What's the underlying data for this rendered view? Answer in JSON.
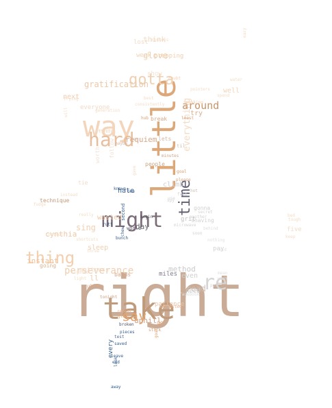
{
  "words": [
    {
      "text": "right",
      "color": "#c9ab96"
    },
    {
      "text": "take",
      "color": "#bf9b7c"
    },
    {
      "text": "little",
      "color": "#dca87a"
    },
    {
      "text": "way",
      "color": "#f2d5bb"
    },
    {
      "text": "might",
      "color": "#7b6c77"
    },
    {
      "text": "hard",
      "color": "#e7bf9f"
    },
    {
      "text": "thing",
      "color": "#f4cfae"
    },
    {
      "text": "gotta",
      "color": "#efd0b3"
    },
    {
      "text": "re",
      "color": "#d6d6d6"
    },
    {
      "text": "time",
      "color": "#5f5f72"
    },
    {
      "text": "say",
      "color": "#e6a46e"
    },
    {
      "text": "everything",
      "color": "#f3dcc6"
    },
    {
      "text": "perseverance",
      "color": "#efcfb0"
    },
    {
      "text": "around",
      "color": "#c79468"
    },
    {
      "text": "gratification",
      "color": "#ecc8a8"
    },
    {
      "text": "glove",
      "color": "#f0cfae"
    },
    {
      "text": "think",
      "color": "#f3dcc8"
    },
    {
      "text": "instant",
      "color": "#efc39c"
    },
    {
      "text": "requiem",
      "color": "#d9a684"
    },
    {
      "text": "cynthia",
      "color": "#f0c8a5"
    },
    {
      "text": "sing",
      "color": "#f2d0b2"
    },
    {
      "text": "uphill",
      "color": "#cf9f80"
    },
    {
      "text": "method",
      "color": "#c9c9c9"
    },
    {
      "text": "read",
      "color": "#cdbfb5"
    },
    {
      "text": "patience",
      "color": "#eac3a6"
    },
    {
      "text": "day",
      "color": "#6c6a73"
    },
    {
      "text": "hate",
      "color": "#38628f"
    },
    {
      "text": "climb",
      "color": "#cfcfcf"
    },
    {
      "text": "people",
      "color": "#c9a585"
    },
    {
      "text": "try",
      "color": "#d9b08f"
    },
    {
      "text": "well",
      "color": "#f3d4b8"
    },
    {
      "text": "next",
      "color": "#f2cbb0"
    },
    {
      "text": "everyone",
      "color": "#f3d9c6"
    },
    {
      "text": "lost",
      "color": "#f3dcc8"
    },
    {
      "text": "week",
      "color": "#f0d4b6"
    },
    {
      "text": "prepping",
      "color": "#f0cfae"
    },
    {
      "text": "show",
      "color": "#f4e2d2"
    },
    {
      "text": "doubt",
      "color": "#f4cfae"
    },
    {
      "text": "break",
      "color": "#d3a98c"
    },
    {
      "text": "lets",
      "color": "#d4b8a4"
    },
    {
      "text": "til",
      "color": "#d4bca8"
    },
    {
      "text": "minutes",
      "color": "#cda385"
    },
    {
      "text": "follow",
      "color": "#f0e0d2"
    },
    {
      "text": "worth",
      "color": "#f2e4d6"
    },
    {
      "text": "tie",
      "color": "#f3dac6"
    },
    {
      "text": "goal",
      "color": "#d99c6f"
    },
    {
      "text": "please",
      "color": "#d6a27a"
    },
    {
      "text": "hot",
      "color": "#cbbdb2"
    },
    {
      "text": "gonna",
      "color": "#cfcfcf"
    },
    {
      "text": "shaving",
      "color": "#d2d2d2"
    },
    {
      "text": "grit",
      "color": "#c3c3c3"
    },
    {
      "text": "begin",
      "color": "#4f4f5f"
    },
    {
      "text": "world",
      "color": "#5b5b6b"
    },
    {
      "text": "wasted",
      "color": "#f0c8a8"
    },
    {
      "text": "technique",
      "color": "#c79a78"
    },
    {
      "text": "sleep",
      "color": "#f0ceb0"
    },
    {
      "text": "going",
      "color": "#dab08c"
    },
    {
      "text": "mattress",
      "color": "#f4dcc8"
    },
    {
      "text": "ll",
      "color": "#f0cdb0"
    },
    {
      "text": "rubber",
      "color": "#d8a787"
    },
    {
      "text": "bands",
      "color": "#d8a787"
    },
    {
      "text": "miles",
      "color": "#7b7b87"
    },
    {
      "text": "even",
      "color": "#cfcfcf"
    },
    {
      "text": "need",
      "color": "#c9c9c9"
    },
    {
      "text": "pay",
      "color": "#d3d3d3"
    },
    {
      "text": "tonight",
      "color": "#cf9f80"
    },
    {
      "text": "exhausted",
      "color": "#eab08c"
    },
    {
      "text": "broken",
      "color": "#4e5466"
    },
    {
      "text": "repeat",
      "color": "#eab08c"
    },
    {
      "text": "go",
      "color": "#e6a46e"
    },
    {
      "text": "stick",
      "color": "#d99c6f"
    },
    {
      "text": "pieces",
      "color": "#315a8c"
    },
    {
      "text": "test",
      "color": "#4e6a93"
    },
    {
      "text": "saved",
      "color": "#315a8c"
    },
    {
      "text": "leave",
      "color": "#315a8c"
    },
    {
      "text": "end",
      "color": "#315a8c"
    },
    {
      "text": "every",
      "color": "#315a8c"
    },
    {
      "text": "away",
      "color": "#315a8c"
    },
    {
      "text": "goat",
      "color": "#e6a46e"
    },
    {
      "text": "gloat",
      "color": "#e6a46e"
    },
    {
      "text": "look",
      "color": "#315a8c"
    },
    {
      "text": "known",
      "color": "#315a8c"
    },
    {
      "text": "one",
      "color": "#315a8c"
    },
    {
      "text": "second",
      "color": "#315a8c"
    },
    {
      "text": "chew",
      "color": "#315a8c"
    },
    {
      "text": "spend",
      "color": "#f3dcc6"
    },
    {
      "text": "water",
      "color": "#f3dcc6"
    },
    {
      "text": "easy",
      "color": "#f3dcc6"
    },
    {
      "text": "pointers",
      "color": "#f3dcc6"
    },
    {
      "text": "speaking",
      "color": "#f0cfae"
    },
    {
      "text": "least",
      "color": "#d6a27a"
    },
    {
      "text": "consistently",
      "color": "#f3dcc6"
    },
    {
      "text": "best",
      "color": "#f3dcc6"
    },
    {
      "text": "trying",
      "color": "#f3dcc6"
    },
    {
      "text": "generation",
      "color": "#f3dcc6"
    },
    {
      "text": "lessons",
      "color": "#f3dcc6"
    },
    {
      "text": "hub",
      "color": "#d6a27a"
    },
    {
      "text": "ten",
      "color": "#d4b8a4"
    },
    {
      "text": "maybe",
      "color": "#d4b8a4"
    },
    {
      "text": "gave",
      "color": "#f3dcc6"
    },
    {
      "text": "instead",
      "color": "#f3dcc6"
    },
    {
      "text": "fudge",
      "color": "#f3dcc6"
    },
    {
      "text": "really",
      "color": "#f3dcc6"
    },
    {
      "text": "control",
      "color": "#f3dcc6"
    },
    {
      "text": "shortcuts",
      "color": "#f3dcc6"
    },
    {
      "text": "figured",
      "color": "#f3dcc6"
    },
    {
      "text": "light",
      "color": "#f3dcc6"
    },
    {
      "text": "three",
      "color": "#f3dcc6"
    },
    {
      "text": "another",
      "color": "#d3d3d3"
    },
    {
      "text": "secret",
      "color": "#d3d3d3"
    },
    {
      "text": "behind",
      "color": "#e0e0e0"
    },
    {
      "text": "microwave",
      "color": "#d3d3d3"
    },
    {
      "text": "kid",
      "color": "#e0e0e0"
    },
    {
      "text": "mean",
      "color": "#e0e0e0"
    },
    {
      "text": "yeah",
      "color": "#e0e0e0"
    },
    {
      "text": "put",
      "color": "#d3d3d3"
    },
    {
      "text": "facebook",
      "color": "#e0e0e0"
    },
    {
      "text": "nothing",
      "color": "#e0e0e0"
    },
    {
      "text": "five",
      "color": "#f3dcc6"
    },
    {
      "text": "keep",
      "color": "#f3dcc6"
    },
    {
      "text": "tough",
      "color": "#f3dcc6"
    },
    {
      "text": "bed",
      "color": "#f3dcc6"
    },
    {
      "text": "monkeys",
      "color": "#f3dcc6"
    },
    {
      "text": "will",
      "color": "#f3dcc6"
    },
    {
      "text": "clicking",
      "color": "#f3dcc6"
    },
    {
      "text": "fast",
      "color": "#d3d3d3"
    },
    {
      "text": "spy",
      "color": "#d3d3d3"
    },
    {
      "text": "soon",
      "color": "#d3d3d3"
    },
    {
      "text": "rutt",
      "color": "#315a8c"
    },
    {
      "text": "bunch",
      "color": "#315a8c"
    },
    {
      "text": "use",
      "color": "#d3d3d3"
    }
  ]
}
